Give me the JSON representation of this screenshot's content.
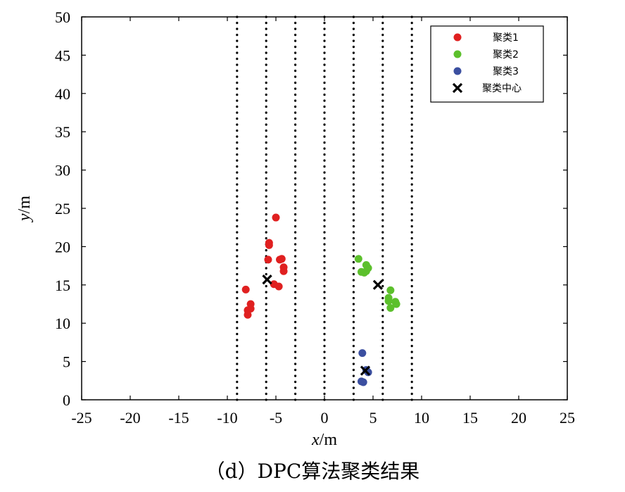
{
  "caption": "（d）DPC算法聚类结果",
  "chart_data": {
    "type": "scatter",
    "xlabel_var": "x",
    "xlabel_unit": "/m",
    "ylabel_var": "y",
    "ylabel_unit": "/m",
    "xlim": [
      -25,
      25
    ],
    "ylim": [
      0,
      50
    ],
    "xticks": [
      -25,
      -20,
      -15,
      -10,
      -5,
      0,
      5,
      10,
      15,
      20,
      25
    ],
    "yticks": [
      0,
      5,
      10,
      15,
      20,
      25,
      30,
      35,
      40,
      45,
      50
    ],
    "grid": false,
    "legend_position": "top-right",
    "lane_lines_x": [
      -9,
      -6,
      -3,
      0,
      3,
      6,
      9
    ],
    "series": [
      {
        "name": "聚类1",
        "marker": "circle",
        "color": "#e02020",
        "points": [
          [
            -5.0,
            23.8
          ],
          [
            -5.7,
            20.5
          ],
          [
            -5.7,
            20.2
          ],
          [
            -5.8,
            18.3
          ],
          [
            -4.4,
            18.4
          ],
          [
            -4.6,
            18.3
          ],
          [
            -4.2,
            17.3
          ],
          [
            -4.2,
            16.8
          ],
          [
            -5.2,
            15.1
          ],
          [
            -4.7,
            14.8
          ],
          [
            -8.1,
            14.4
          ],
          [
            -7.6,
            12.5
          ],
          [
            -7.6,
            11.9
          ],
          [
            -7.9,
            11.7
          ],
          [
            -7.9,
            11.1
          ]
        ]
      },
      {
        "name": "聚类2",
        "marker": "circle",
        "color": "#5cc02c",
        "points": [
          [
            3.5,
            18.4
          ],
          [
            4.3,
            17.6
          ],
          [
            4.5,
            17.2
          ],
          [
            4.3,
            16.8
          ],
          [
            3.8,
            16.7
          ],
          [
            4.1,
            16.6
          ],
          [
            6.8,
            14.3
          ],
          [
            6.6,
            13.3
          ],
          [
            6.6,
            12.9
          ],
          [
            7.3,
            12.8
          ],
          [
            7.4,
            12.5
          ],
          [
            6.8,
            12.0
          ]
        ]
      },
      {
        "name": "聚类3",
        "marker": "circle",
        "color": "#3b4fa0",
        "points": [
          [
            3.9,
            6.1
          ],
          [
            4.3,
            3.9
          ],
          [
            4.5,
            3.6
          ],
          [
            3.8,
            2.4
          ],
          [
            4.0,
            2.3
          ]
        ]
      },
      {
        "name": "聚类中心",
        "marker": "x",
        "color": "#000000",
        "points": [
          [
            -5.9,
            15.7
          ],
          [
            5.5,
            15.0
          ],
          [
            4.2,
            3.8
          ]
        ]
      }
    ]
  }
}
